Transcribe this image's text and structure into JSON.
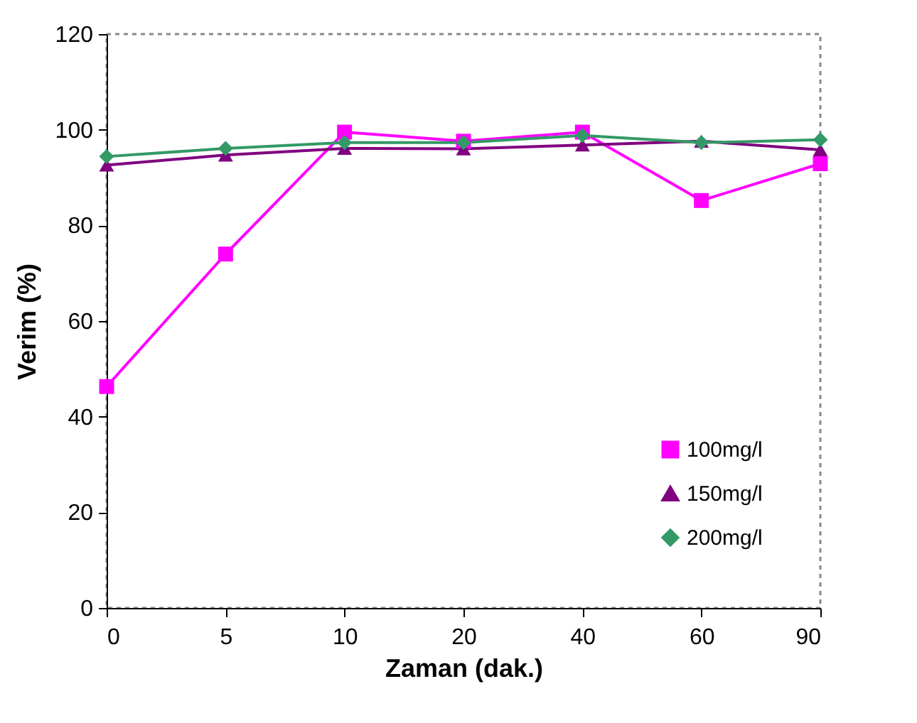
{
  "chart_data": {
    "type": "line",
    "xlabel": "Zaman (dak.)",
    "ylabel": "Verim (%)",
    "categories": [
      "0",
      "5",
      "10",
      "20",
      "40",
      "60",
      "90"
    ],
    "ylim": [
      0,
      120
    ],
    "yticks": [
      0,
      20,
      40,
      60,
      80,
      100,
      120
    ],
    "grid": false,
    "legend": "bottom right",
    "line_style": "solid",
    "series": [
      {
        "name": "100mg/l",
        "color": "#ff00ff",
        "marker": "square",
        "values": [
          46.3,
          74,
          99.5,
          97.6,
          99.5,
          85.2,
          92.9
        ]
      },
      {
        "name": "150mg/l",
        "color": "#800080",
        "marker": "triangle",
        "values": [
          92.6,
          94.7,
          96.1,
          96,
          96.8,
          97.6,
          95.8
        ]
      },
      {
        "name": "200mg/l",
        "color": "#339966",
        "marker": "diamond",
        "values": [
          94.4,
          96.1,
          97.3,
          97.3,
          98.8,
          97.3,
          97.9
        ]
      }
    ]
  }
}
